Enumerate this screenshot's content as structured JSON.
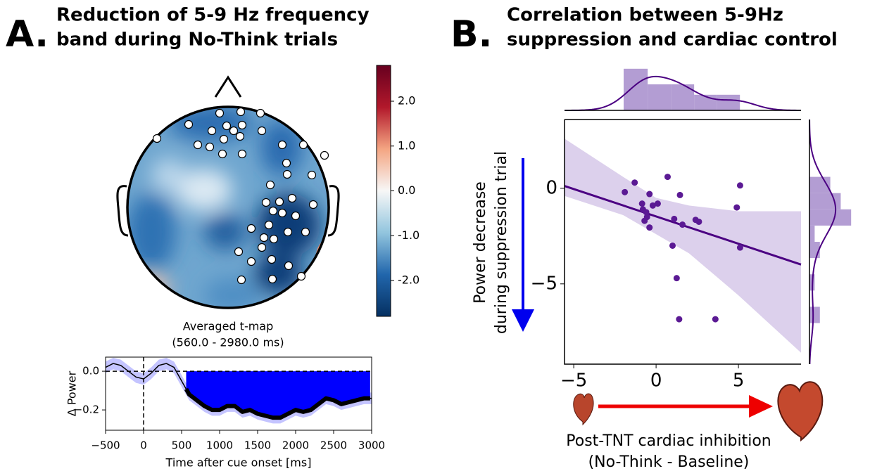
{
  "panels": [
    {
      "letter": "A.",
      "title_lines": [
        "Reduction of 5-9 Hz frequency",
        "band during No-Think trials"
      ]
    },
    {
      "letter": "B.",
      "title_lines": [
        "Correlation between 5-9Hz",
        "suppression and cardiac control"
      ]
    }
  ],
  "chart_data": [
    {
      "type": "colorbar",
      "title": "Averaged t-map",
      "subtitle": "(560.0 - 2980.0 ms)",
      "ylim": [
        -2.8,
        2.8
      ],
      "yticks": [
        {
          "value": 2,
          "label": "2.0"
        },
        {
          "value": 1,
          "label": "1.0"
        },
        {
          "value": 0,
          "label": "0.0"
        },
        {
          "value": -1,
          "label": "-1.0"
        },
        {
          "value": -2,
          "label": "-2.0"
        }
      ],
      "colors": [
        "#053061",
        "#2166ac",
        "#92c5de",
        "#f7f7f7",
        "#f4a582",
        "#b2182b",
        "#67001f"
      ]
    },
    {
      "type": "line",
      "ylabel": "Δ Power",
      "xlabel": "Time after cue onset [ms]",
      "x": [
        -500,
        -400,
        -300,
        -200,
        -100,
        0,
        100,
        200,
        300,
        400,
        500,
        600,
        700,
        800,
        900,
        1000,
        1100,
        1200,
        1300,
        1400,
        1500,
        1600,
        1700,
        1800,
        1900,
        2000,
        2100,
        2200,
        2300,
        2400,
        2500,
        2600,
        2700,
        2800,
        2900,
        3000
      ],
      "series": [
        {
          "color": "#000000",
          "values": [
            0.02,
            0.04,
            0.03,
            0.0,
            -0.03,
            -0.04,
            -0.01,
            0.03,
            0.04,
            0.02,
            -0.05,
            -0.12,
            -0.15,
            -0.18,
            -0.2,
            -0.2,
            -0.18,
            -0.18,
            -0.21,
            -0.2,
            -0.22,
            -0.23,
            -0.24,
            -0.24,
            -0.22,
            -0.2,
            -0.21,
            -0.2,
            -0.17,
            -0.14,
            -0.15,
            -0.17,
            -0.16,
            -0.15,
            -0.14,
            -0.14
          ]
        }
      ],
      "ci": 0.03,
      "ci_color": "#c4c4ff",
      "highlight": [
        560,
        2980
      ],
      "highlight_color": "#0000ff",
      "hlines": [
        0
      ],
      "vlines": [
        0
      ],
      "xlim": [
        -500,
        3000
      ],
      "ylim": [
        -0.305,
        0.073
      ],
      "xticks": [
        {
          "value": -500,
          "label": "−500"
        },
        0,
        500,
        1000,
        1500,
        2000,
        2500,
        3000
      ],
      "yticks": [
        {
          "value": 0,
          "label": "0.0"
        },
        {
          "value": -0.2,
          "label": "−0.2"
        }
      ]
    },
    {
      "type": "scatter",
      "xlabel_lines": [
        "Post-TNT cardiac inhibition",
        "(No-Think - Baseline)"
      ],
      "ylabel_lines": [
        "Power decrease",
        "during suppression trial"
      ],
      "color": "#5b1a94",
      "line_color": "#4b0082",
      "band_color": "#dcd0ec",
      "hist_color": "#a68ccb",
      "x": [
        -1.9,
        -1.3,
        -0.85,
        -0.8,
        -0.6,
        -0.7,
        -0.55,
        -0.4,
        -0.2,
        0.1,
        -0.4,
        0.7,
        1.1,
        1.45,
        1.6,
        1.0,
        1.25,
        1.4,
        3.6,
        2.4,
        2.6,
        4.9,
        5.1,
        5.1
      ],
      "y": [
        -0.2,
        0.3,
        -0.8,
        -1.1,
        -1.25,
        -1.7,
        -1.5,
        -0.3,
        -0.9,
        -0.8,
        -2.05,
        0.6,
        -1.6,
        -0.35,
        -1.9,
        -3.0,
        -4.7,
        -6.85,
        -6.85,
        -1.65,
        -1.75,
        -1.0,
        0.15,
        -3.1
      ],
      "fit": {
        "slope": -0.286,
        "intercept": -1.47
      },
      "ci_x": [
        -5.56,
        -2,
        0,
        2,
        5,
        8.8
      ],
      "ci_upper": [
        2.6,
        0.6,
        -0.5,
        -0.9,
        -1.2,
        -1.2
      ],
      "ci_lower": [
        -0.4,
        -1.4,
        -2.4,
        -3.4,
        -5.6,
        -8.6
      ],
      "xlim": [
        -5.56,
        8.8
      ],
      "ylim": [
        -9.2,
        3.6
      ],
      "xticks": [
        {
          "value": -5,
          "label": "−5"
        },
        0,
        5
      ],
      "yticks": [
        0,
        {
          "value": -5,
          "label": "−5"
        }
      ],
      "x_hist": {
        "bins": [
          -1.97,
          -0.51,
          0.9,
          2.31,
          3.68,
          5.09
        ],
        "counts": [
          8,
          5,
          5,
          3,
          3
        ]
      },
      "y_hist": {
        "bins": [
          -7.05,
          -6.2,
          -5.35,
          -4.5,
          -3.65,
          -2.8,
          -1.95,
          -1.1,
          -0.25,
          0.6
        ],
        "counts": [
          2,
          0,
          1,
          0,
          2,
          1,
          8,
          6,
          4
        ]
      }
    }
  ]
}
